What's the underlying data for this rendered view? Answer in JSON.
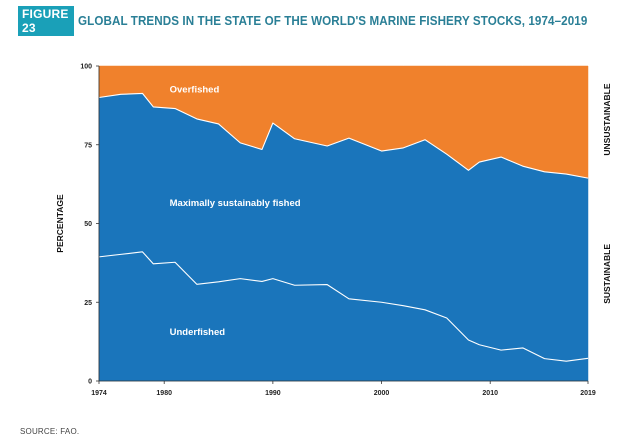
{
  "header": {
    "figure_label": "FIGURE 23",
    "title": "GLOBAL TRENDS IN THE STATE OF THE WORLD'S MARINE FISHERY STOCKS, 1974–2019"
  },
  "source": "SOURCE: FAO.",
  "colors": {
    "underfished": "#1a75bb",
    "maximally_sustainably_fished": "#1a75bb",
    "overfished": "#f0812c",
    "boundary_line": "#ffffff"
  },
  "chart_data": {
    "type": "area",
    "title": "GLOBAL TRENDS IN THE STATE OF THE WORLD'S MARINE FISHERY STOCKS, 1974–2019",
    "xlabel": "",
    "ylabel": "PERCENTAGE",
    "xlim": [
      1974,
      2019
    ],
    "ylim": [
      0,
      100
    ],
    "x_ticks": [
      1974,
      1980,
      1990,
      2000,
      2010,
      2019
    ],
    "y_ticks": [
      0,
      25,
      50,
      75,
      100
    ],
    "stacked": true,
    "grid": false,
    "right_labels": {
      "upper": "UNSUSTAINABLE",
      "lower": "SUSTAINABLE"
    },
    "x": [
      1974,
      1976,
      1978,
      1979,
      1981,
      1983,
      1985,
      1987,
      1989,
      1990,
      1992,
      1995,
      1997,
      2000,
      2002,
      2004,
      2006,
      2008,
      2009,
      2011,
      2013,
      2015,
      2017,
      2019
    ],
    "series": [
      {
        "name": "Underfished",
        "values": [
          39.4,
          40.2,
          41.0,
          37.2,
          37.7,
          30.7,
          31.5,
          32.5,
          31.6,
          32.5,
          30.4,
          30.6,
          26.1,
          25.0,
          23.9,
          22.6,
          20.0,
          13.0,
          11.5,
          9.8,
          10.5,
          7.1,
          6.3,
          7.2
        ]
      },
      {
        "name": "Maximally sustainably fished",
        "values": [
          50.6,
          50.8,
          50.3,
          49.8,
          48.8,
          52.5,
          50.1,
          43.1,
          41.9,
          49.4,
          46.5,
          44.0,
          51.0,
          48.0,
          50.1,
          54.0,
          52.0,
          53.9,
          58.0,
          61.3,
          57.7,
          59.3,
          59.4,
          57.2
        ]
      },
      {
        "name": "Overfished",
        "values": [
          10.0,
          9.0,
          8.7,
          13.0,
          13.5,
          16.8,
          18.4,
          24.4,
          26.5,
          18.1,
          23.1,
          25.4,
          22.9,
          27.0,
          26.0,
          23.4,
          28.0,
          33.1,
          30.5,
          28.9,
          31.8,
          33.6,
          34.3,
          35.6
        ]
      }
    ]
  }
}
